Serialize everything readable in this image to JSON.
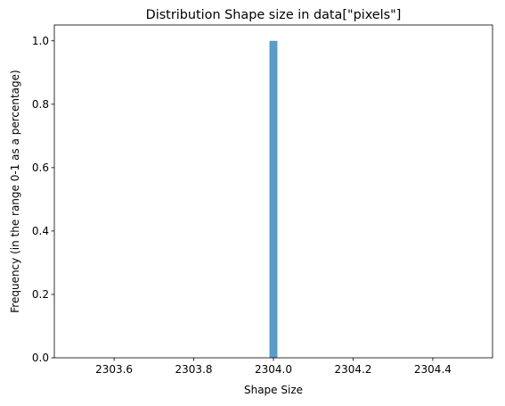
{
  "chart_data": {
    "type": "bar",
    "title": "Distribution Shape size in data[\"pixels\"]",
    "xlabel": "Shape Size",
    "ylabel": "Frequency (in the range 0-1 as a percentage)",
    "xlim": [
      2303.45,
      2304.55
    ],
    "ylim": [
      0,
      1.05
    ],
    "xticks": [
      2303.6,
      2303.8,
      2304.0,
      2304.2,
      2304.4
    ],
    "xtick_labels": [
      "2303.6",
      "2303.8",
      "2304.0",
      "2304.2",
      "2304.4"
    ],
    "yticks": [
      0.0,
      0.2,
      0.4,
      0.6,
      0.8,
      1.0
    ],
    "ytick_labels": [
      "0.0",
      "0.2",
      "0.4",
      "0.6",
      "0.8",
      "1.0"
    ],
    "bars": [
      {
        "x0": 2303.99,
        "x1": 2304.01,
        "value": 1.0
      }
    ],
    "bar_color": "#5a9bc7",
    "grid": false
  }
}
